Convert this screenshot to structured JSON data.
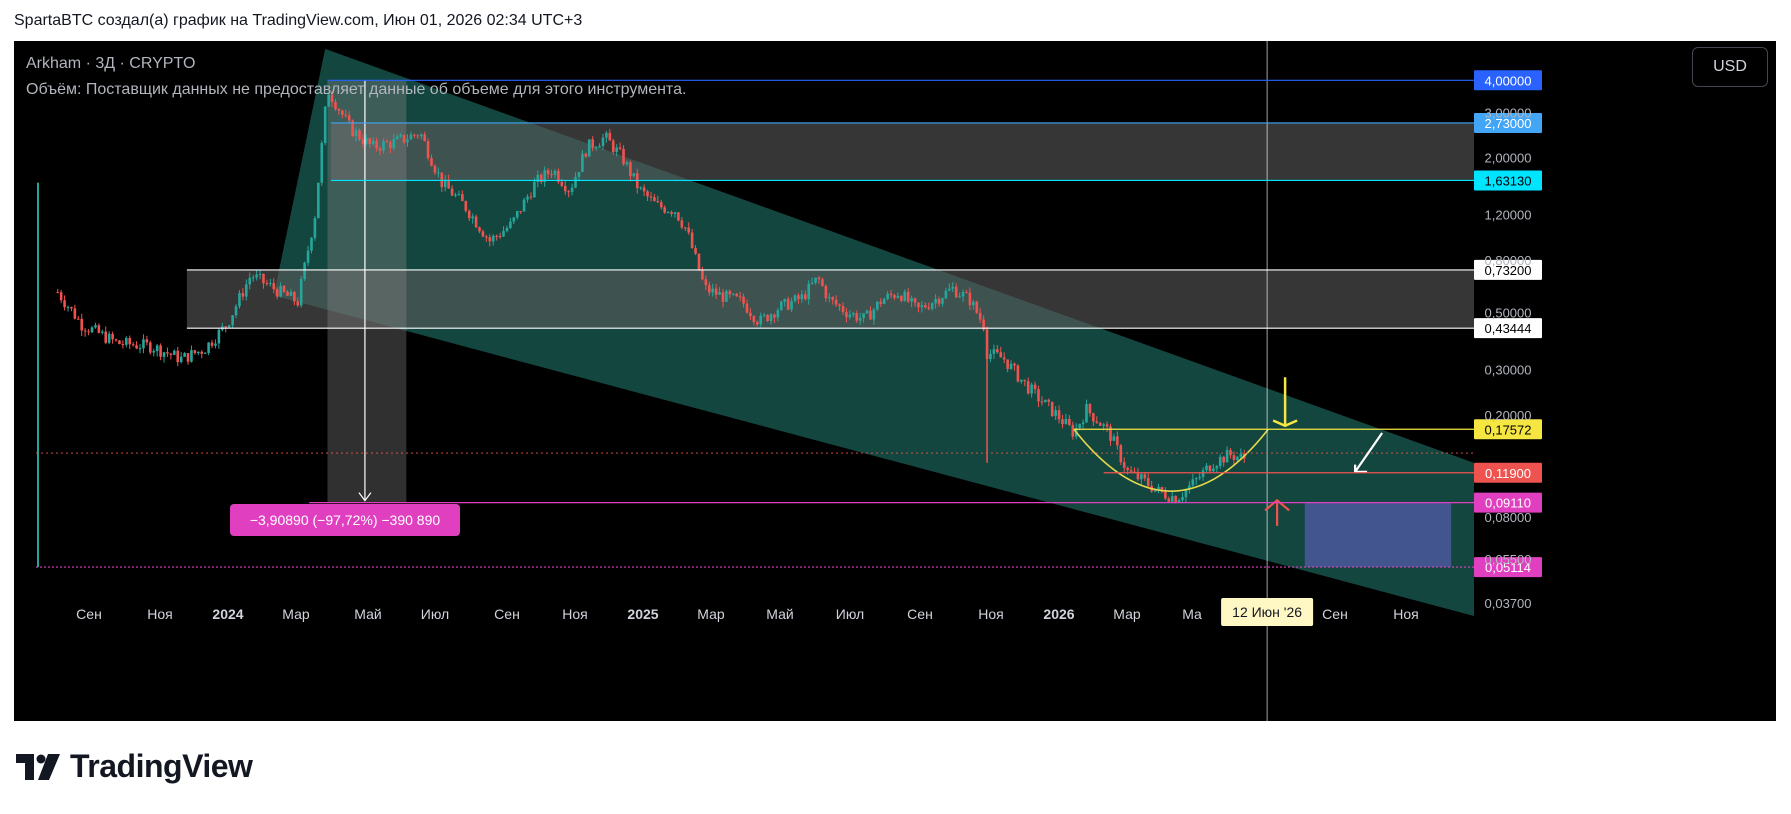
{
  "header": {
    "caption": "SpartaBTC создал(а) график на TradingView.com, Июн 01, 2026 02:34 UTC+3"
  },
  "legend": {
    "symbol_line": "Arkham · 3Д · CRYPTO",
    "volume_note": "Объём: Поставщик данных не предоставляет данные об объеме для этого инструмента."
  },
  "currency_button": "USD",
  "footer": {
    "brand": "TradingView",
    "logo_icon": "tradingview-logo-icon"
  },
  "colors": {
    "background": "#000000",
    "up_candle": "#26a69a",
    "down_candle": "#ef5350",
    "channel_fill": "#1b5e55",
    "zone_fill": "#5a5a5a",
    "cup_line": "#e5d84a",
    "magenta": "#e040c0",
    "yellow_arrow": "#f5e642",
    "red_arrow": "#ef5350"
  },
  "chart_data": {
    "type": "line",
    "title": "Arkham · 3Д · CRYPTO",
    "y_scale": "log",
    "ylim": [
      0.033,
      5.2
    ],
    "time_labels": [
      "Сен",
      "Ноя",
      "2024",
      "Мар",
      "Май",
      "Июл",
      "Сен",
      "Ноя",
      "2025",
      "Мар",
      "Май",
      "Июл",
      "Сен",
      "Ноя",
      "2026",
      "Мар",
      "Ма",
      "Сен",
      "Ноя"
    ],
    "y_tick_labels": [
      "3,00000",
      "2,00000",
      "1,20000",
      "0,80000",
      "0,50000",
      "0,30000",
      "0,20000",
      "0,08000",
      "0,05500",
      "0,03700"
    ],
    "y_tick_values": [
      3.0,
      2.0,
      1.2,
      0.8,
      0.5,
      0.3,
      0.2,
      0.08,
      0.055,
      0.037
    ],
    "series": [
      {
        "x": [
          "2023-07-20",
          "2023-08-10",
          "2023-09-10",
          "2023-10-10",
          "2023-11-05",
          "2023-11-25",
          "2023-12-15",
          "2024-01-05",
          "2024-01-25",
          "2024-02-15",
          "2024-03-01",
          "2024-03-12",
          "2024-04-01",
          "2024-04-20",
          "2024-05-10",
          "2024-06-01",
          "2024-06-20",
          "2024-07-10",
          "2024-08-01",
          "2024-08-20",
          "2024-09-10",
          "2024-09-25",
          "2024-10-10",
          "2024-10-25",
          "2024-11-10",
          "2024-11-25",
          "2024-12-10",
          "2024-12-25",
          "2025-01-10",
          "2025-01-20",
          "2025-02-05",
          "2025-02-20",
          "2025-03-10",
          "2025-03-25",
          "2025-04-10",
          "2025-05-01",
          "2025-05-15",
          "2025-05-25",
          "2025-06-10",
          "2025-06-25",
          "2025-07-10",
          "2025-07-25",
          "2025-08-10",
          "2025-08-25",
          "2025-09-10",
          "2025-09-25",
          "2025-10-08",
          "2025-10-10",
          "2025-10-25",
          "2025-11-10",
          "2025-11-25",
          "2025-12-10",
          "2025-12-25",
          "2026-01-05",
          "2026-01-15",
          "2026-01-25",
          "2026-02-10",
          "2026-02-25",
          "2026-03-10",
          "2026-03-25",
          "2026-04-10",
          "2026-04-25",
          "2026-05-10",
          "2026-05-25"
        ],
        "y": [
          0.6,
          0.45,
          0.38,
          0.37,
          0.33,
          0.36,
          0.45,
          0.7,
          0.62,
          0.55,
          1.2,
          3.7,
          2.6,
          2.2,
          2.3,
          2.5,
          1.6,
          1.3,
          0.95,
          1.1,
          1.6,
          1.8,
          1.5,
          2.2,
          2.4,
          2.0,
          1.5,
          1.3,
          1.25,
          1.05,
          0.62,
          0.58,
          0.55,
          0.46,
          0.52,
          0.57,
          0.68,
          0.56,
          0.5,
          0.47,
          0.56,
          0.6,
          0.51,
          0.56,
          0.62,
          0.56,
          0.44,
          0.35,
          0.33,
          0.27,
          0.23,
          0.2,
          0.17,
          0.21,
          0.19,
          0.17,
          0.12,
          0.11,
          0.1,
          0.095,
          0.11,
          0.13,
          0.14,
          0.135
        ]
      }
    ],
    "price_levels": [
      {
        "label": "4,00000",
        "value": 4.0,
        "color": "#2962ff"
      },
      {
        "label": "2,73000",
        "value": 2.73,
        "color": "#42a5f5"
      },
      {
        "label": "1,63130",
        "value": 1.6313,
        "color": "#00e5ff"
      },
      {
        "label": "0,73200",
        "value": 0.732,
        "color": "#ffffff"
      },
      {
        "label": "0,43444",
        "value": 0.43444,
        "color": "#ffffff"
      },
      {
        "label": "0,17572",
        "value": 0.17572,
        "color": "#f5e642"
      },
      {
        "label": "0,11900",
        "value": 0.119,
        "color": "#ef5350"
      },
      {
        "label": "0,09110",
        "value": 0.0911,
        "color": "#e040c0"
      },
      {
        "label": "0,05114",
        "value": 0.05114,
        "color": "#e040c0"
      }
    ],
    "measure_label": "−3,90890 (−97,72%) −390 890",
    "crosshair_date": "12 Июн '26"
  }
}
